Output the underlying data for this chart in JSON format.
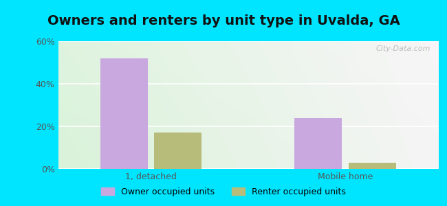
{
  "title": "Owners and renters by unit type in Uvalda, GA",
  "categories": [
    "1, detached",
    "Mobile home"
  ],
  "owner_values": [
    52,
    24
  ],
  "renter_values": [
    17,
    3
  ],
  "owner_color": "#c9a8e0",
  "renter_color": "#b8bc7a",
  "ylim": [
    0,
    60
  ],
  "yticks": [
    0,
    20,
    40,
    60
  ],
  "ytick_labels": [
    "0%",
    "20%",
    "40%",
    "60%"
  ],
  "bar_width": 0.28,
  "group_positions": [
    0.55,
    1.7
  ],
  "background_outer": "#00e5ff",
  "title_fontsize": 14,
  "tick_fontsize": 9,
  "legend_fontsize": 9,
  "watermark": "City-Data.com"
}
